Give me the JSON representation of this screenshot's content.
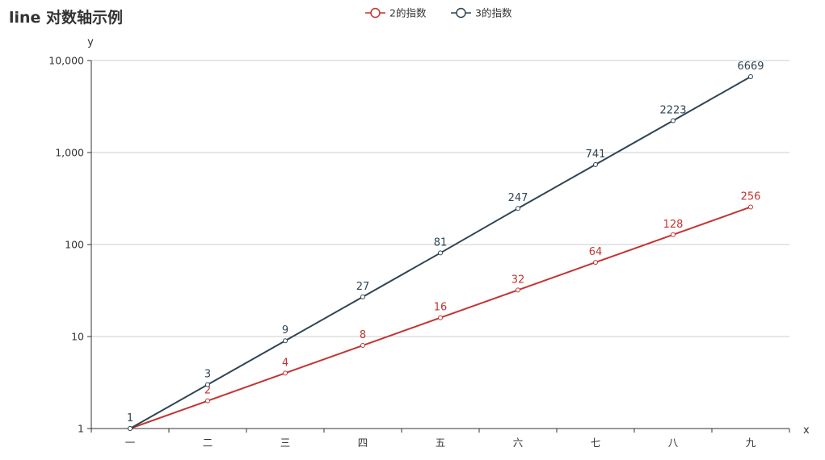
{
  "chart_data": {
    "type": "line",
    "title": "line 对数轴示例",
    "xlabel": "x",
    "ylabel": "y",
    "categories": [
      "一",
      "二",
      "三",
      "四",
      "五",
      "六",
      "七",
      "八",
      "九"
    ],
    "y_scale": "log",
    "ylim": [
      1,
      10000
    ],
    "y_ticks": [
      1,
      10,
      100,
      1000,
      10000
    ],
    "y_tick_labels": [
      "1",
      "10",
      "100",
      "1,000",
      "10,000"
    ],
    "grid": {
      "x": false,
      "y": true
    },
    "legend_position": "top-center",
    "series": [
      {
        "name": "2的指数",
        "color": "#c23531",
        "values": [
          1,
          2,
          4,
          8,
          16,
          32,
          64,
          128,
          256
        ],
        "labels": [
          "",
          "2",
          "4",
          "8",
          "16",
          "32",
          "64",
          "128",
          "256"
        ]
      },
      {
        "name": "3的指数",
        "color": "#2f4554",
        "values": [
          1,
          3,
          9,
          27,
          81,
          247,
          741,
          2223,
          6669
        ],
        "labels": [
          "1",
          "3",
          "9",
          "27",
          "81",
          "247",
          "741",
          "2223",
          "6669"
        ]
      }
    ]
  }
}
